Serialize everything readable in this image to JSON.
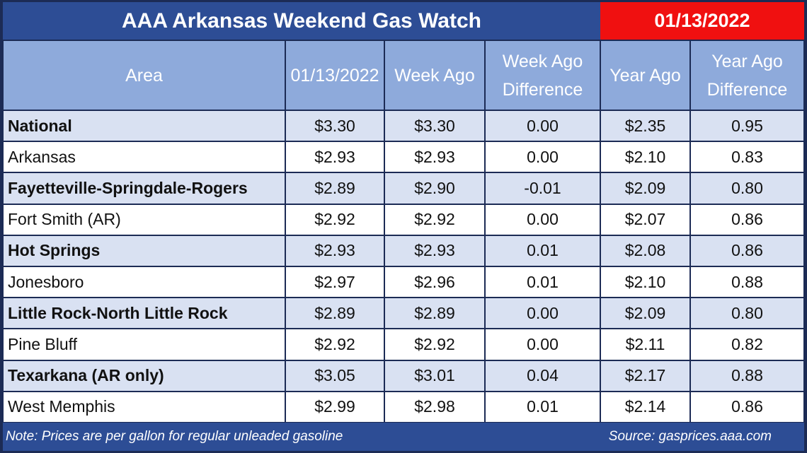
{
  "header": {
    "title": "AAA Arkansas Weekend Gas Watch",
    "date": "01/13/2022"
  },
  "table": {
    "columns": [
      "Area",
      "01/13/2022",
      "Week Ago",
      "Week Ago Difference",
      "Year Ago",
      "Year Ago Difference"
    ],
    "rows": [
      [
        "National",
        "$3.30",
        "$3.30",
        "0.00",
        "$2.35",
        "0.95"
      ],
      [
        "Arkansas",
        "$2.93",
        "$2.93",
        "0.00",
        "$2.10",
        "0.83"
      ],
      [
        "Fayetteville-Springdale-Rogers",
        "$2.89",
        "$2.90",
        "-0.01",
        "$2.09",
        "0.80"
      ],
      [
        "Fort Smith (AR)",
        "$2.92",
        "$2.92",
        "0.00",
        "$2.07",
        "0.86"
      ],
      [
        "Hot Springs",
        "$2.93",
        "$2.93",
        "0.01",
        "$2.08",
        "0.86"
      ],
      [
        "Jonesboro",
        "$2.97",
        "$2.96",
        "0.01",
        "$2.10",
        "0.88"
      ],
      [
        "Little Rock-North Little Rock",
        "$2.89",
        "$2.89",
        "0.00",
        "$2.09",
        "0.80"
      ],
      [
        "Pine Bluff",
        "$2.92",
        "$2.92",
        "0.00",
        "$2.11",
        "0.82"
      ],
      [
        "Texarkana (AR only)",
        "$3.05",
        "$3.01",
        "0.04",
        "$2.17",
        "0.88"
      ],
      [
        "West Memphis",
        "$2.99",
        "$2.98",
        "0.01",
        "$2.14",
        "0.86"
      ]
    ]
  },
  "footer": {
    "note": "Note: Prices are per gallon for regular unleaded gasoline",
    "source": "Source: gasprices.aaa.com"
  }
}
